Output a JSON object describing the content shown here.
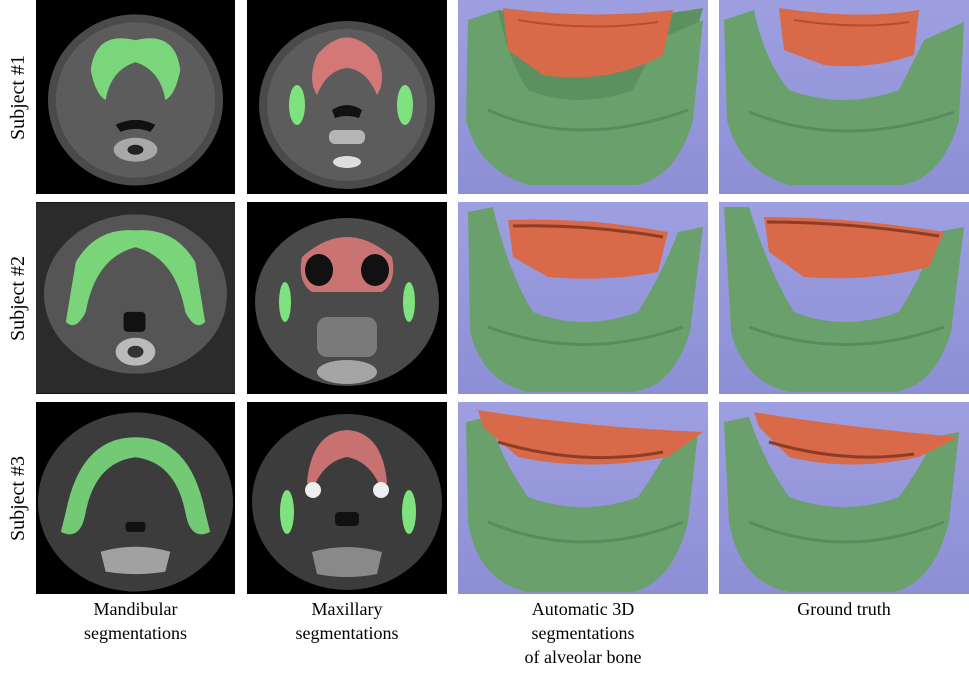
{
  "rows": [
    {
      "label": "Subject #1"
    },
    {
      "label": "Subject #2"
    },
    {
      "label": "Subject #3"
    }
  ],
  "columns": [
    {
      "caption_lines": [
        "Mandibular",
        "segmentations"
      ]
    },
    {
      "caption_lines": [
        "Maxillary",
        "segmentations"
      ]
    },
    {
      "caption_lines": [
        "Automatic 3D",
        "segmentations",
        "of alveolar bone"
      ]
    },
    {
      "caption_lines": [
        "Ground truth"
      ]
    }
  ],
  "colors": {
    "ct_background": "#000000",
    "render_background": "#9596da",
    "mandible_overlay": "#7ee27e",
    "maxilla_overlay": "#e07a7a",
    "mandible_3d": "#5d9060",
    "maxilla_3d": "#d86a4a"
  }
}
